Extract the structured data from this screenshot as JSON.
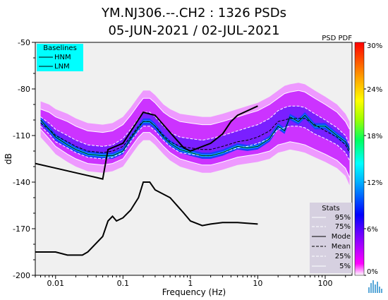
{
  "chart_data": {
    "type": "line",
    "title_line1": "YM.NJ306.--.CH2 : 1326 PSDs",
    "title_line2": "05-JUN-2021 / 02-JUL-2021",
    "corner_label": "PSD PDF",
    "xlabel": "Frequency (Hz)",
    "ylabel": "dB",
    "x_scale": "log",
    "xlim": [
      0.005,
      250
    ],
    "ylim": [
      -200,
      -50
    ],
    "x_ticks": [
      {
        "value": 0.01,
        "label": "0.01"
      },
      {
        "value": 0.1,
        "label": "0.1"
      },
      {
        "value": 1,
        "label": "1"
      },
      {
        "value": 10,
        "label": "10"
      },
      {
        "value": 100,
        "label": "100"
      }
    ],
    "y_ticks": [
      {
        "value": -50,
        "label": "-50"
      },
      {
        "value": -80,
        "label": "-80"
      },
      {
        "value": -110,
        "label": "-110"
      },
      {
        "value": -140,
        "label": "-140"
      },
      {
        "value": -170,
        "label": "-170"
      },
      {
        "value": -200,
        "label": "-200"
      }
    ],
    "colorbar": {
      "min": 0,
      "max": 30,
      "ticks": [
        {
          "value": 0,
          "label": "0%"
        },
        {
          "value": 6,
          "label": "6%"
        },
        {
          "value": 12,
          "label": "12%"
        },
        {
          "value": 18,
          "label": "18%"
        },
        {
          "value": 24,
          "label": "24%"
        },
        {
          "value": 30,
          "label": "30%"
        }
      ]
    },
    "baselines_legend": {
      "title": "Baselines",
      "entries": [
        "HNM",
        "LNM"
      ],
      "color": "#00ffff"
    },
    "stats_legend": {
      "title": "Stats",
      "entries": [
        "95%",
        "75%",
        "Mode",
        "Mean",
        "25%",
        "5%"
      ],
      "color": "#d6d0e0"
    },
    "baselines": {
      "HNM": {
        "x": [
          0.005,
          0.01,
          0.02,
          0.04,
          0.05,
          0.06,
          0.1,
          0.2,
          0.3,
          0.5,
          0.8,
          1,
          2,
          3,
          4,
          5,
          10
        ],
        "y": [
          -128,
          -131,
          -134,
          -137,
          -138,
          -119,
          -115,
          -95,
          -97,
          -108,
          -118,
          -120,
          -115,
          -109,
          -101,
          -97,
          -91
        ]
      },
      "LNM": {
        "x": [
          0.005,
          0.01,
          0.015,
          0.02,
          0.025,
          0.03,
          0.05,
          0.06,
          0.07,
          0.08,
          0.1,
          0.13,
          0.17,
          0.2,
          0.25,
          0.3,
          0.5,
          0.8,
          1,
          1.5,
          2,
          3,
          5,
          10
        ],
        "y": [
          -185,
          -185,
          -187,
          -187,
          -187,
          -185,
          -175,
          -165,
          -162,
          -165,
          -163,
          -158,
          -150,
          -140,
          -140,
          -145,
          -150,
          -160,
          -165,
          -168,
          -167,
          -166,
          -166,
          -167
        ]
      }
    },
    "stats": {
      "x": [
        0.006,
        0.008,
        0.01,
        0.015,
        0.02,
        0.03,
        0.05,
        0.07,
        0.1,
        0.13,
        0.17,
        0.2,
        0.25,
        0.3,
        0.4,
        0.5,
        0.7,
        1,
        1.5,
        2,
        3,
        5,
        7,
        10,
        15,
        20,
        25,
        30,
        40,
        50,
        70,
        100,
        150,
        200,
        230
      ],
      "p95": [
        -93,
        -95,
        -98,
        -101,
        -104,
        -107,
        -108,
        -107,
        -103,
        -97,
        -90,
        -86,
        -86,
        -89,
        -95,
        -98,
        -101,
        -102,
        -103,
        -103,
        -101,
        -98,
        -96,
        -94,
        -90,
        -86,
        -83,
        -82,
        -81,
        -82,
        -86,
        -90,
        -95,
        -101,
        -106
      ],
      "p75": [
        -98,
        -102,
        -106,
        -110,
        -113,
        -116,
        -117,
        -116,
        -112,
        -106,
        -99,
        -95,
        -95,
        -98,
        -104,
        -108,
        -111,
        -112,
        -113,
        -112,
        -110,
        -107,
        -105,
        -103,
        -99,
        -94,
        -92,
        -91,
        -91,
        -92,
        -96,
        -100,
        -105,
        -110,
        -116
      ],
      "mode": [
        -100,
        -106,
        -111,
        -116,
        -119,
        -122,
        -123,
        -123,
        -120,
        -112,
        -105,
        -101,
        -101,
        -104,
        -111,
        -115,
        -119,
        -121,
        -123,
        -123,
        -121,
        -117,
        -118,
        -117,
        -112,
        -104,
        -107,
        -98,
        -101,
        -97,
        -104,
        -104,
        -110,
        -114,
        -119
      ],
      "mean": [
        -102,
        -106,
        -110,
        -114,
        -117,
        -120,
        -121,
        -120,
        -117,
        -111,
        -104,
        -101,
        -101,
        -104,
        -110,
        -114,
        -117,
        -118,
        -119,
        -119,
        -117,
        -114,
        -113,
        -111,
        -107,
        -101,
        -100,
        -99,
        -99,
        -99,
        -103,
        -107,
        -111,
        -116,
        -121
      ],
      "p25": [
        -104,
        -109,
        -114,
        -118,
        -121,
        -124,
        -125,
        -124,
        -121,
        -114,
        -107,
        -104,
        -104,
        -107,
        -113,
        -117,
        -121,
        -122,
        -123,
        -123,
        -121,
        -118,
        -117,
        -115,
        -112,
        -106,
        -105,
        -104,
        -104,
        -105,
        -109,
        -112,
        -116,
        -121,
        -126
      ],
      "p5": [
        -106,
        -112,
        -117,
        -122,
        -125,
        -128,
        -129,
        -128,
        -125,
        -118,
        -111,
        -108,
        -108,
        -111,
        -117,
        -121,
        -125,
        -127,
        -129,
        -129,
        -127,
        -124,
        -123,
        -122,
        -120,
        -116,
        -115,
        -114,
        -115,
        -116,
        -119,
        -122,
        -126,
        -131,
        -137
      ]
    }
  }
}
